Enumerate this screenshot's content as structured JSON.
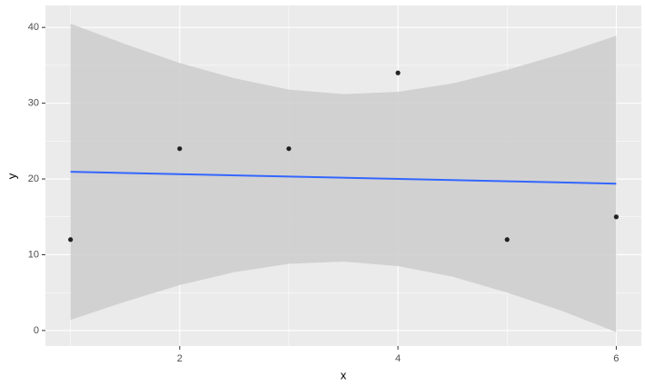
{
  "chart_data": {
    "type": "scatter",
    "x_label": "x",
    "y_label": "y",
    "x": [
      1,
      2,
      3,
      4,
      5,
      6
    ],
    "values": [
      12,
      24,
      24,
      34,
      12,
      15
    ],
    "color": "#000000",
    "fit": {
      "color": "#3366ff",
      "x": [
        1,
        6
      ],
      "values": [
        20.95,
        19.38
      ]
    },
    "band": {
      "color": "#cccccc",
      "x": [
        1,
        1.5,
        2,
        2.5,
        3,
        3.5,
        4,
        4.5,
        5,
        5.5,
        6
      ],
      "lower": [
        1.4,
        3.8,
        6.0,
        7.7,
        8.8,
        9.1,
        8.5,
        7.1,
        5.0,
        2.6,
        -0.2
      ],
      "upper": [
        40.5,
        37.8,
        35.3,
        33.3,
        31.8,
        31.2,
        31.5,
        32.6,
        34.4,
        36.5,
        38.9
      ]
    },
    "xlim": [
      0.77,
      6.23
    ],
    "ylim": [
      -2.05,
      42.9
    ],
    "xticks": [
      2,
      4,
      6
    ],
    "yticks": [
      0,
      10,
      20,
      30,
      40
    ],
    "grid": true
  }
}
